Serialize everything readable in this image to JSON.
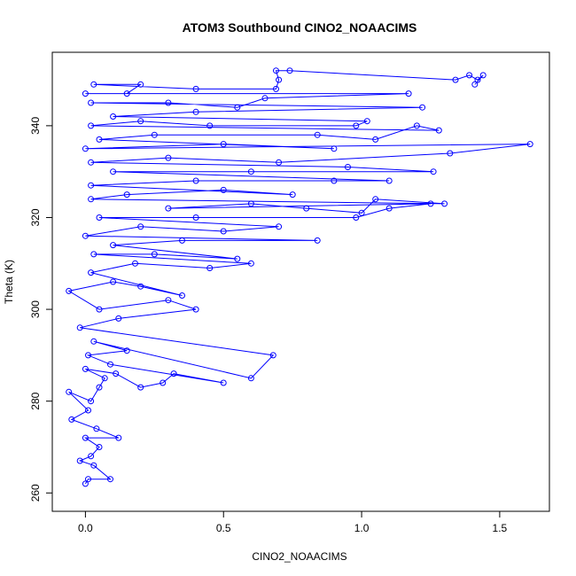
{
  "chart_data": {
    "type": "scatter",
    "title": "ATOM3 Southbound CINO2_NOAACIMS",
    "xlabel": "CINO2_NOAACIMS",
    "ylabel": "Theta (K)",
    "xlim": [
      -0.12,
      1.68
    ],
    "ylim": [
      256,
      356
    ],
    "x_ticks": [
      0.0,
      0.5,
      1.0,
      1.5
    ],
    "x_tick_labels": [
      "0.0",
      "0.5",
      "1.0",
      "1.5"
    ],
    "y_ticks": [
      260,
      280,
      300,
      320,
      340
    ],
    "y_tick_labels": [
      "260",
      "280",
      "300",
      "320",
      "340"
    ],
    "grid": false,
    "legend": "none",
    "marker": "open-circle",
    "connected": true,
    "color": "#0000ff",
    "series": [
      {
        "points": [
          [
            0.0,
            262
          ],
          [
            0.01,
            263
          ],
          [
            0.09,
            263
          ],
          [
            0.03,
            266
          ],
          [
            -0.02,
            267
          ],
          [
            0.02,
            268
          ],
          [
            0.05,
            270
          ],
          [
            0.0,
            272
          ],
          [
            0.12,
            272
          ],
          [
            0.04,
            274
          ],
          [
            -0.05,
            276
          ],
          [
            0.01,
            278
          ],
          [
            -0.06,
            282
          ],
          [
            0.02,
            280
          ],
          [
            0.05,
            283
          ],
          [
            0.07,
            285
          ],
          [
            0.0,
            287
          ],
          [
            0.11,
            286
          ],
          [
            0.2,
            283
          ],
          [
            0.28,
            284
          ],
          [
            0.32,
            286
          ],
          [
            0.5,
            284
          ],
          [
            0.09,
            288
          ],
          [
            0.01,
            290
          ],
          [
            0.15,
            291
          ],
          [
            0.03,
            293
          ],
          [
            0.6,
            285
          ],
          [
            0.68,
            290
          ],
          [
            -0.02,
            296
          ],
          [
            0.12,
            298
          ],
          [
            0.4,
            300
          ],
          [
            0.3,
            302
          ],
          [
            0.05,
            300
          ],
          [
            -0.06,
            304
          ],
          [
            0.1,
            306
          ],
          [
            0.2,
            305
          ],
          [
            0.35,
            303
          ],
          [
            0.02,
            308
          ],
          [
            0.18,
            310
          ],
          [
            0.45,
            309
          ],
          [
            0.6,
            310
          ],
          [
            0.03,
            312
          ],
          [
            0.25,
            312
          ],
          [
            0.55,
            311
          ],
          [
            0.1,
            314
          ],
          [
            0.35,
            315
          ],
          [
            0.84,
            315
          ],
          [
            0.0,
            316
          ],
          [
            0.2,
            318
          ],
          [
            0.5,
            317
          ],
          [
            0.7,
            318
          ],
          [
            0.05,
            320
          ],
          [
            0.4,
            320
          ],
          [
            0.98,
            320
          ],
          [
            1.1,
            322
          ],
          [
            1.25,
            323
          ],
          [
            0.3,
            322
          ],
          [
            0.6,
            323
          ],
          [
            0.8,
            322
          ],
          [
            1.0,
            321
          ],
          [
            1.05,
            324
          ],
          [
            1.3,
            323
          ],
          [
            0.02,
            324
          ],
          [
            0.15,
            325
          ],
          [
            0.5,
            326
          ],
          [
            0.75,
            325
          ],
          [
            0.02,
            327
          ],
          [
            0.4,
            328
          ],
          [
            0.9,
            328
          ],
          [
            1.1,
            328
          ],
          [
            0.1,
            330
          ],
          [
            0.6,
            330
          ],
          [
            1.26,
            330
          ],
          [
            0.95,
            331
          ],
          [
            0.02,
            332
          ],
          [
            0.3,
            333
          ],
          [
            0.7,
            332
          ],
          [
            1.32,
            334
          ],
          [
            1.61,
            336
          ],
          [
            0.0,
            335
          ],
          [
            0.5,
            336
          ],
          [
            0.9,
            335
          ],
          [
            0.05,
            337
          ],
          [
            0.25,
            338
          ],
          [
            0.84,
            338
          ],
          [
            1.05,
            337
          ],
          [
            1.2,
            340
          ],
          [
            1.28,
            339
          ],
          [
            0.02,
            340
          ],
          [
            0.2,
            341
          ],
          [
            0.45,
            340
          ],
          [
            0.98,
            340
          ],
          [
            1.02,
            341
          ],
          [
            0.1,
            342
          ],
          [
            0.4,
            343
          ],
          [
            1.22,
            344
          ],
          [
            0.02,
            345
          ],
          [
            0.3,
            345
          ],
          [
            0.55,
            344
          ],
          [
            0.65,
            346
          ],
          [
            1.17,
            347
          ],
          [
            0.0,
            347
          ],
          [
            0.15,
            347
          ],
          [
            0.2,
            349
          ],
          [
            0.03,
            349
          ],
          [
            0.4,
            348
          ],
          [
            0.69,
            348
          ],
          [
            0.7,
            350
          ],
          [
            0.69,
            352
          ],
          [
            0.74,
            352
          ],
          [
            1.34,
            350
          ],
          [
            1.39,
            351
          ],
          [
            1.42,
            350
          ],
          [
            1.44,
            351
          ],
          [
            1.41,
            349
          ]
        ]
      }
    ]
  }
}
